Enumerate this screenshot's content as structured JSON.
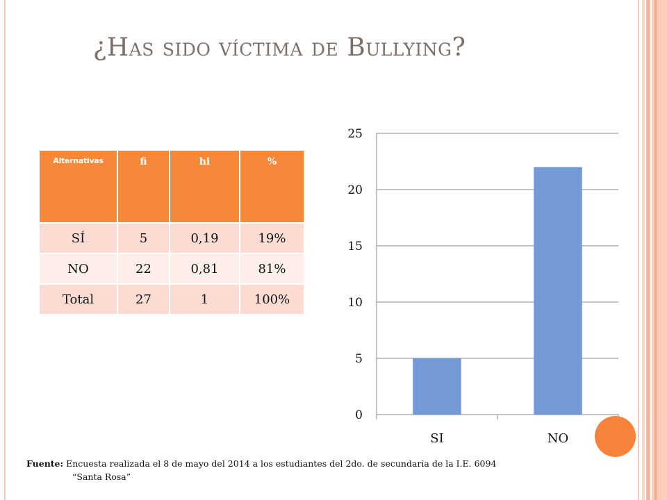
{
  "slide": {
    "title": "¿Has sido víctima de Bullying?",
    "accent_color": "#f6883a",
    "circle_color": "#f7823b"
  },
  "table": {
    "headers": [
      "Alternativas",
      "fi",
      "hi",
      "%"
    ],
    "rows": [
      [
        "SÍ",
        "5",
        "0,19",
        "19%"
      ],
      [
        "NO",
        "22",
        "0,81",
        "81%"
      ],
      [
        "Total",
        "27",
        "1",
        "100%"
      ]
    ]
  },
  "chart_data": {
    "type": "bar",
    "categories": [
      "SI",
      "NO"
    ],
    "values": [
      5,
      22
    ],
    "ylim": [
      0,
      25
    ],
    "yticks": [
      0,
      5,
      10,
      15,
      20,
      25
    ],
    "bar_color": "#7499d7",
    "grid": true,
    "title": "",
    "xlabel": "",
    "ylabel": ""
  },
  "source": {
    "label": "Fuente:",
    "text_line1": "Encuesta realizada el 8 de mayo del 2014 a los estudiantes del 2do. de secundaria de la I.E. 6094",
    "text_line2": "“Santa Rosa”"
  }
}
